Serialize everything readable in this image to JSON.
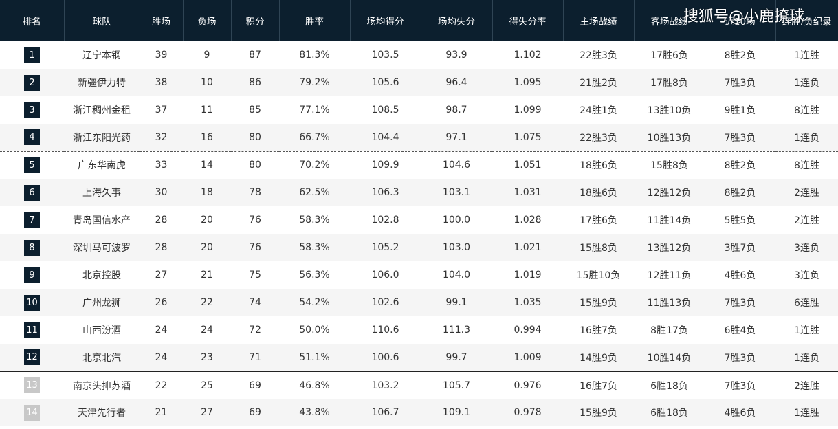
{
  "watermark": "搜狐号@小鹿撩球",
  "colors": {
    "header_bg": "#0c1f2e",
    "badge_in": "#0c1f2e",
    "badge_out": "#c8c8c8"
  },
  "headers": [
    "排名",
    "球队",
    "胜场",
    "负场",
    "积分",
    "胜率",
    "场均得分",
    "场均失分",
    "得失分率",
    "主场战绩",
    "客场战绩",
    "近10场",
    "连胜/负纪录"
  ],
  "rows": [
    {
      "rank": "1",
      "team": "辽宁本钢",
      "wins": "39",
      "losses": "9",
      "points": "87",
      "win_pct": "81.3%",
      "ppg": "103.5",
      "oppg": "93.9",
      "ratio": "1.102",
      "home": "22胜3负",
      "away": "17胜6负",
      "last10": "8胜2负",
      "streak": "1连胜"
    },
    {
      "rank": "2",
      "team": "新疆伊力特",
      "wins": "38",
      "losses": "10",
      "points": "86",
      "win_pct": "79.2%",
      "ppg": "105.6",
      "oppg": "96.4",
      "ratio": "1.095",
      "home": "21胜2负",
      "away": "17胜8负",
      "last10": "7胜3负",
      "streak": "1连负"
    },
    {
      "rank": "3",
      "team": "浙江稠州金租",
      "wins": "37",
      "losses": "11",
      "points": "85",
      "win_pct": "77.1%",
      "ppg": "108.5",
      "oppg": "98.7",
      "ratio": "1.099",
      "home": "24胜1负",
      "away": "13胜10负",
      "last10": "9胜1负",
      "streak": "8连胜"
    },
    {
      "rank": "4",
      "team": "浙江东阳光药",
      "wins": "32",
      "losses": "16",
      "points": "80",
      "win_pct": "66.7%",
      "ppg": "104.4",
      "oppg": "97.1",
      "ratio": "1.075",
      "home": "22胜3负",
      "away": "10胜13负",
      "last10": "7胜3负",
      "streak": "1连负"
    },
    {
      "rank": "5",
      "team": "广东华南虎",
      "wins": "33",
      "losses": "14",
      "points": "80",
      "win_pct": "70.2%",
      "ppg": "109.9",
      "oppg": "104.6",
      "ratio": "1.051",
      "home": "18胜6负",
      "away": "15胜8负",
      "last10": "8胜2负",
      "streak": "8连胜"
    },
    {
      "rank": "6",
      "team": "上海久事",
      "wins": "30",
      "losses": "18",
      "points": "78",
      "win_pct": "62.5%",
      "ppg": "106.3",
      "oppg": "103.1",
      "ratio": "1.031",
      "home": "18胜6负",
      "away": "12胜12负",
      "last10": "8胜2负",
      "streak": "2连胜"
    },
    {
      "rank": "7",
      "team": "青岛国信水产",
      "wins": "28",
      "losses": "20",
      "points": "76",
      "win_pct": "58.3%",
      "ppg": "102.8",
      "oppg": "100.0",
      "ratio": "1.028",
      "home": "17胜6负",
      "away": "11胜14负",
      "last10": "5胜5负",
      "streak": "2连胜"
    },
    {
      "rank": "8",
      "team": "深圳马可波罗",
      "wins": "28",
      "losses": "20",
      "points": "76",
      "win_pct": "58.3%",
      "ppg": "105.2",
      "oppg": "103.0",
      "ratio": "1.021",
      "home": "15胜8负",
      "away": "13胜12负",
      "last10": "3胜7负",
      "streak": "3连负"
    },
    {
      "rank": "9",
      "team": "北京控股",
      "wins": "27",
      "losses": "21",
      "points": "75",
      "win_pct": "56.3%",
      "ppg": "106.0",
      "oppg": "104.0",
      "ratio": "1.019",
      "home": "15胜10负",
      "away": "12胜11负",
      "last10": "4胜6负",
      "streak": "3连负"
    },
    {
      "rank": "10",
      "team": "广州龙狮",
      "wins": "26",
      "losses": "22",
      "points": "74",
      "win_pct": "54.2%",
      "ppg": "102.6",
      "oppg": "99.1",
      "ratio": "1.035",
      "home": "15胜9负",
      "away": "11胜13负",
      "last10": "7胜3负",
      "streak": "6连胜"
    },
    {
      "rank": "11",
      "team": "山西汾酒",
      "wins": "24",
      "losses": "24",
      "points": "72",
      "win_pct": "50.0%",
      "ppg": "110.6",
      "oppg": "111.3",
      "ratio": "0.994",
      "home": "16胜7负",
      "away": "8胜17负",
      "last10": "6胜4负",
      "streak": "1连胜"
    },
    {
      "rank": "12",
      "team": "北京北汽",
      "wins": "24",
      "losses": "23",
      "points": "71",
      "win_pct": "51.1%",
      "ppg": "100.6",
      "oppg": "99.7",
      "ratio": "1.009",
      "home": "14胜9负",
      "away": "10胜14负",
      "last10": "7胜3负",
      "streak": "1连负"
    },
    {
      "rank": "13",
      "team": "南京头排苏酒",
      "wins": "22",
      "losses": "25",
      "points": "69",
      "win_pct": "46.8%",
      "ppg": "103.2",
      "oppg": "105.7",
      "ratio": "0.976",
      "home": "16胜7负",
      "away": "6胜18负",
      "last10": "7胜3负",
      "streak": "2连胜"
    },
    {
      "rank": "14",
      "team": "天津先行者",
      "wins": "21",
      "losses": "27",
      "points": "69",
      "win_pct": "43.8%",
      "ppg": "106.7",
      "oppg": "109.1",
      "ratio": "0.978",
      "home": "15胜9负",
      "away": "6胜18负",
      "last10": "4胜6负",
      "streak": "1连胜"
    }
  ]
}
